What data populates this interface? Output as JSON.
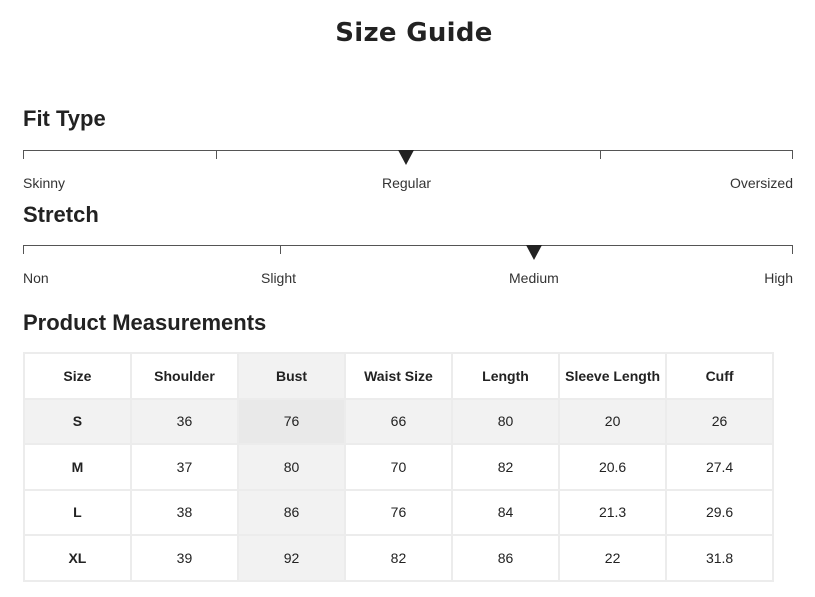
{
  "title": "Size Guide",
  "fit_type": {
    "heading": "Fit Type",
    "labels": [
      "Skinny",
      "Regular",
      "Oversized"
    ],
    "selected": "Regular",
    "selected_fraction": 0.5
  },
  "stretch": {
    "heading": "Stretch",
    "labels": [
      "Non",
      "Slight",
      "Medium",
      "High"
    ],
    "selected": "Medium",
    "selected_fraction": 0.667
  },
  "measurements": {
    "heading": "Product Measurements",
    "columns": [
      "Size",
      "Shoulder",
      "Bust",
      "Waist Size",
      "Length",
      "Sleeve Length",
      "Cuff"
    ],
    "rows": [
      [
        "S",
        "36",
        "76",
        "66",
        "80",
        "20",
        "26"
      ],
      [
        "M",
        "37",
        "80",
        "70",
        "82",
        "20.6",
        "27.4"
      ],
      [
        "L",
        "38",
        "86",
        "76",
        "84",
        "21.3",
        "29.6"
      ],
      [
        "XL",
        "39",
        "92",
        "82",
        "86",
        "22",
        "31.8"
      ]
    ],
    "highlighted_row": "S",
    "highlighted_column": "Bust"
  }
}
